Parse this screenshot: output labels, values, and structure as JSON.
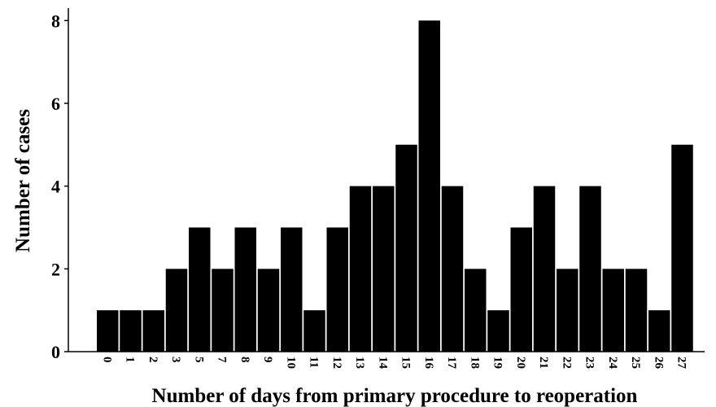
{
  "chart_data": {
    "type": "bar",
    "title": "",
    "xlabel": "Number of days from primary procedure to reoperation",
    "ylabel": "Number of cases",
    "categories": [
      "0",
      "1",
      "2",
      "3",
      "5",
      "7",
      "8",
      "9",
      "10",
      "11",
      "12",
      "13",
      "14",
      "15",
      "16",
      "17",
      "18",
      "19",
      "20",
      "21",
      "22",
      "23",
      "24",
      "25",
      "26",
      "27"
    ],
    "values": [
      1,
      1,
      1,
      2,
      3,
      2,
      3,
      2,
      3,
      1,
      3,
      4,
      4,
      5,
      8,
      4,
      2,
      1,
      3,
      4,
      2,
      4,
      2,
      2,
      1,
      5
    ],
    "ylim": [
      0,
      8.3
    ],
    "yticks": [
      0,
      2,
      4,
      6,
      8
    ],
    "grid": false,
    "legend": "none",
    "bar_color": "#000000"
  }
}
